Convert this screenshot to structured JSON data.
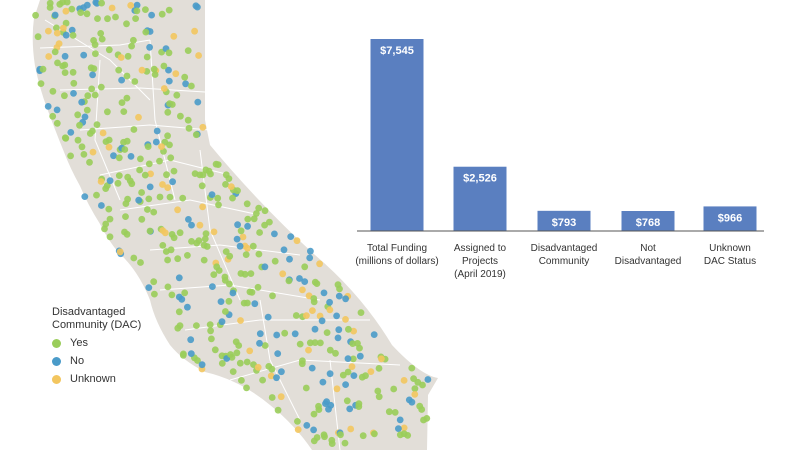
{
  "legend": {
    "title": "Disadvantaged Community (DAC)",
    "items": [
      {
        "label": "Yes",
        "color": "#9acd5a"
      },
      {
        "label": "No",
        "color": "#4a9bc9"
      },
      {
        "label": "Unknown",
        "color": "#f3c65f"
      }
    ]
  },
  "map": {
    "fill_color": "#e2ded8",
    "border_color": "#ffffff"
  },
  "chart_data": {
    "type": "bar",
    "title": "",
    "xlabel": "",
    "ylabel": "",
    "categories": [
      [
        "Total Funding",
        "(millions of dollars)"
      ],
      [
        "Assigned to",
        "Projects",
        "(April 2019)"
      ],
      [
        "Disadvantaged",
        "Community"
      ],
      [
        "Not",
        "Disadvantaged"
      ],
      [
        "Unknown",
        "DAC Status"
      ]
    ],
    "values": [
      7545,
      2526,
      793,
      768,
      966
    ],
    "data_labels": [
      "$7,545",
      "$2,526",
      "$793",
      "$768",
      "$966"
    ],
    "bar_color": "#5a7fc0",
    "ylim": [
      0,
      7545
    ],
    "grid": false,
    "legend": "none"
  }
}
